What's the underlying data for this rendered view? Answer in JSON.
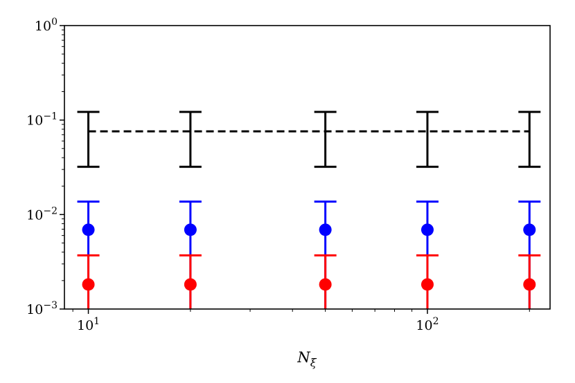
{
  "chart_data": {
    "type": "scatter",
    "x_scale": "log",
    "y_scale": "log",
    "xlabel": "N_ξ",
    "ylabel": "",
    "title": "",
    "xlim": [
      8.5,
      230
    ],
    "ylim": [
      0.001,
      1
    ],
    "grid": false,
    "legend": "none",
    "x_ticks": [
      {
        "value": 10,
        "base": "10",
        "exp": "1"
      },
      {
        "value": 100,
        "base": "10",
        "exp": "2"
      }
    ],
    "y_ticks": [
      {
        "value": 1,
        "base": "10",
        "exp": "0"
      },
      {
        "value": 0.1,
        "base": "10",
        "exp": "−1"
      },
      {
        "value": 0.01,
        "base": "10",
        "exp": "−2"
      },
      {
        "value": 0.001,
        "base": "10",
        "exp": "−3"
      }
    ],
    "reference": {
      "color": "#000000",
      "style": "dashed",
      "value": 0.076,
      "x_range": [
        10,
        200
      ],
      "error_x": [
        10,
        20,
        50,
        100,
        200
      ],
      "error_low": 0.032,
      "error_high": 0.122
    },
    "series": [
      {
        "color": "#0000ff",
        "marker": "circle",
        "x": [
          10,
          20,
          50,
          100,
          200
        ],
        "y": [
          0.0069,
          0.0069,
          0.0069,
          0.0069,
          0.0069
        ],
        "error_low": [
          0.001,
          0.001,
          0.001,
          0.001,
          0.001
        ],
        "error_high": [
          0.0137,
          0.0137,
          0.0137,
          0.0137,
          0.0137
        ]
      },
      {
        "color": "#ff0000",
        "marker": "circle",
        "x": [
          10,
          20,
          50,
          100,
          200
        ],
        "y": [
          0.00182,
          0.00182,
          0.00182,
          0.00182,
          0.00182
        ],
        "error_low": [
          0.001,
          0.001,
          0.001,
          0.001,
          0.001
        ],
        "error_high": [
          0.0037,
          0.0037,
          0.0037,
          0.0037,
          0.0037
        ]
      }
    ]
  }
}
